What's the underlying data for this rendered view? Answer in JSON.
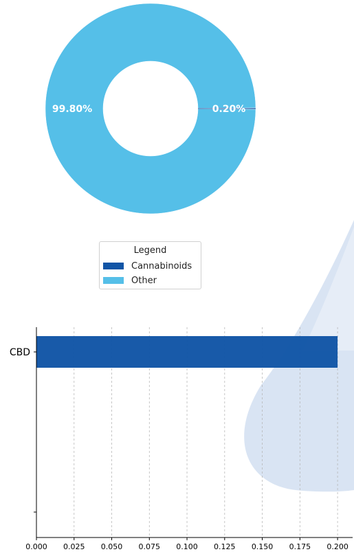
{
  "colors": {
    "cannabinoids": "#1155a6",
    "other": "#55bfe8",
    "watermark": "#c9d8ee"
  },
  "donut": {
    "slices": [
      {
        "name": "Other",
        "percent": 99.8,
        "label": "99.80%"
      },
      {
        "name": "Cannabinoids",
        "percent": 0.2,
        "label": "0.20%"
      }
    ]
  },
  "legend": {
    "title": "Legend",
    "items": [
      "Cannabinoids",
      "Other"
    ]
  },
  "chart_data": [
    {
      "type": "pie",
      "donut": true,
      "categories": [
        "Other",
        "Cannabinoids"
      ],
      "values": [
        99.8,
        0.2
      ],
      "labels": [
        "99.80%",
        "0.20%"
      ],
      "legend": {
        "title": "Legend",
        "entries": [
          "Cannabinoids",
          "Other"
        ],
        "placement": "below"
      }
    },
    {
      "type": "bar",
      "orientation": "horizontal",
      "categories": [
        "CBD",
        ""
      ],
      "values": [
        0.2,
        null
      ],
      "xlim": [
        0,
        0.21
      ],
      "xticks": [
        "0.000",
        "0.025",
        "0.050",
        "0.075",
        "0.100",
        "0.125",
        "0.150",
        "0.175",
        "0.200"
      ],
      "grid": "vertical-dashed",
      "title": "",
      "xlabel": "",
      "ylabel": ""
    }
  ]
}
